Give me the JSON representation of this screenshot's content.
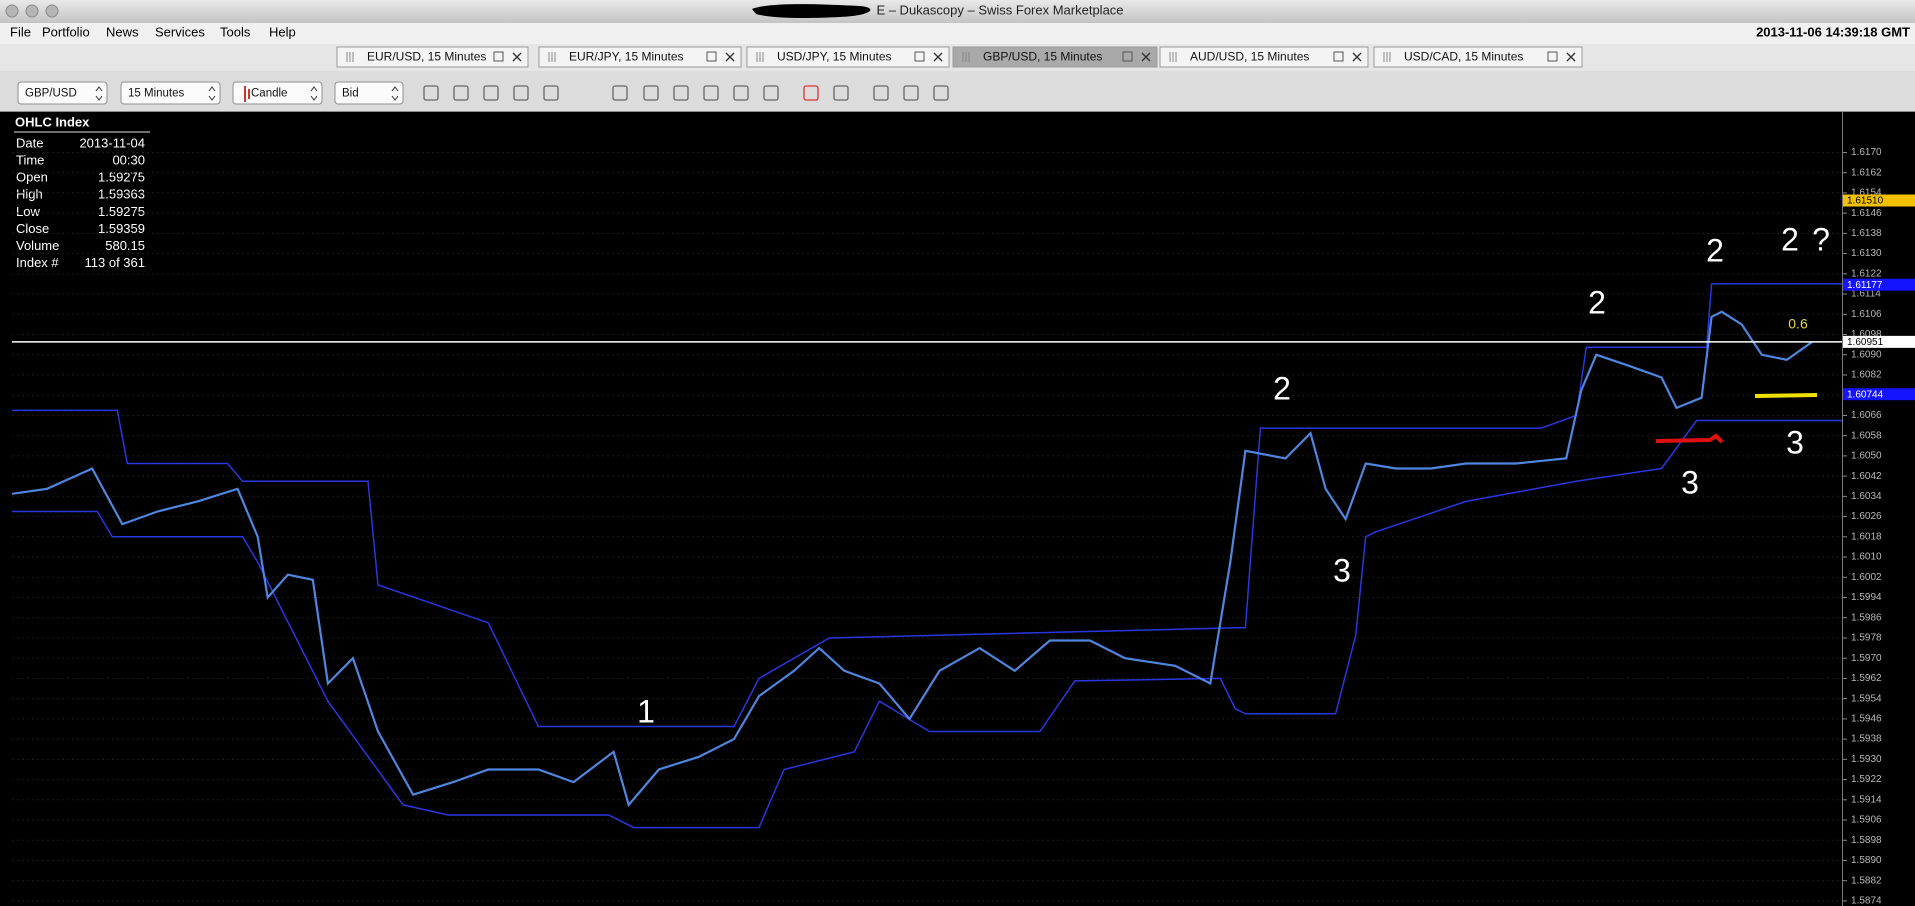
{
  "window": {
    "title": "E – Dukascopy – Swiss Forex Marketplace"
  },
  "menu": [
    "File",
    "Portfolio",
    "News",
    "Services",
    "Tools",
    "Help"
  ],
  "clock": "2013-11-06 14:39:18 GMT",
  "tabs": [
    "EUR/USD, 15 Minutes",
    "EUR/JPY, 15 Minutes",
    "USD/JPY, 15 Minutes",
    "GBP/USD, 15 Minutes",
    "AUD/USD, 15 Minutes",
    "USD/CAD, 15 Minutes"
  ],
  "active_tab": 3,
  "toolbar": [
    "GBP/USD",
    "15 Minutes",
    "Candle",
    "Bid"
  ],
  "ohlc_panel": {
    "title": "OHLC Index",
    "rows": [
      [
        "Date",
        "2013-11-04"
      ],
      [
        "Time",
        "00:30"
      ],
      [
        "Open",
        "1.59275"
      ],
      [
        "High",
        "1.59363"
      ],
      [
        "Low",
        "1.59275"
      ],
      [
        "Close",
        "1.59359"
      ],
      [
        "Volume",
        "580.15"
      ],
      [
        "Index #",
        "113 of 361"
      ]
    ]
  },
  "chart_data": {
    "type": "line",
    "color": "#4f86e0",
    "x": [
      0,
      7,
      16,
      22,
      29,
      37,
      45,
      49,
      51,
      55,
      60,
      63,
      68,
      73,
      80,
      88,
      95,
      105,
      112,
      120,
      123,
      129,
      137,
      144,
      149,
      156,
      161,
      166,
      173,
      179,
      185,
      193,
      200,
      207,
      215,
      222,
      232,
      239,
      243,
      246,
      254,
      259,
      262,
      266,
      270,
      276,
      283,
      290,
      300,
      310,
      313,
      316,
      322,
      329,
      332,
      337,
      339,
      341,
      345,
      349,
      354,
      359
    ],
    "values": [
      1.6035,
      1.6037,
      1.6045,
      1.6023,
      1.6028,
      1.6032,
      1.6037,
      1.6018,
      1.5994,
      1.6003,
      1.6001,
      1.596,
      1.597,
      1.5941,
      1.5916,
      1.5921,
      1.5926,
      1.5926,
      1.5921,
      1.5933,
      1.5912,
      1.5926,
      1.5931,
      1.5938,
      1.5955,
      1.5965,
      1.5974,
      1.5965,
      1.596,
      1.5946,
      1.5965,
      1.5974,
      1.5965,
      1.5977,
      1.5977,
      1.597,
      1.5967,
      1.596,
      1.6008,
      1.6052,
      1.6049,
      1.6059,
      1.6037,
      1.6025,
      1.6047,
      1.6045,
      1.6045,
      1.6047,
      1.6047,
      1.6049,
      1.6076,
      1.609,
      1.6086,
      1.6081,
      1.6069,
      1.6073,
      1.6105,
      1.6107,
      1.6102,
      1.609,
      1.6088,
      1.6095
    ],
    "xlim": [
      0,
      365
    ],
    "ylim": [
      1.5872,
      1.6186
    ],
    "yticks": [
      {
        "value": 1.617,
        "label": "1.6170"
      },
      1.6162,
      1.6154,
      1.6146,
      1.6138,
      {
        "value": 1.613,
        "label": "1.6130"
      },
      1.6122,
      1.6114,
      1.6106,
      1.6098,
      {
        "value": 1.609,
        "label": "1.6090"
      },
      1.6082,
      1.6074,
      1.6066,
      1.6058,
      {
        "value": 1.605,
        "label": "1.6050"
      },
      1.6042,
      1.6034,
      1.6026,
      1.6018,
      {
        "value": 1.601,
        "label": "1.6010"
      },
      1.6002,
      1.5994,
      1.5986,
      1.5978,
      {
        "value": 1.597,
        "label": "1.5970"
      },
      1.5962,
      1.5954,
      1.5946,
      1.5938,
      {
        "value": 1.593,
        "label": "1.5930"
      },
      1.5922,
      1.5914,
      1.5906,
      1.5898,
      {
        "value": 1.589,
        "label": "1.5890"
      },
      1.5882,
      1.5874
    ],
    "grid": true,
    "channels": [
      {
        "color": "#2a36e0",
        "x": [
          0,
          21,
          23,
          43,
          46,
          71,
          73,
          95,
          105,
          144,
          149,
          163,
          244,
          246,
          249,
          305,
          312,
          314,
          338,
          339,
          365
        ],
        "values": [
          1.6068,
          1.6068,
          1.6047,
          1.6047,
          1.604,
          1.604,
          1.5999,
          1.5984,
          1.5943,
          1.5943,
          1.5962,
          1.5978,
          1.5982,
          1.5982,
          1.6061,
          1.6061,
          1.6066,
          1.6093,
          1.6093,
          1.6118,
          1.6118
        ]
      },
      {
        "color": "#2a36e0",
        "x": [
          0,
          17,
          20,
          46,
          49,
          63,
          78,
          87,
          119,
          124,
          149,
          154,
          168,
          173,
          183,
          205,
          212,
          241,
          244,
          246,
          264,
          268,
          270,
          272,
          290,
          312,
          329,
          336,
          365
        ],
        "values": [
          1.6028,
          1.6028,
          1.6018,
          1.6018,
          1.6008,
          1.5953,
          1.5912,
          1.5908,
          1.5908,
          1.5903,
          1.5903,
          1.5926,
          1.5933,
          1.5953,
          1.5941,
          1.5941,
          1.5961,
          1.5962,
          1.595,
          1.5948,
          1.5948,
          1.5979,
          1.6018,
          1.602,
          1.6032,
          1.604,
          1.6045,
          1.6064,
          1.6064
        ]
      }
    ],
    "price_markers": [
      {
        "value": 1.6151,
        "label": "1.61510",
        "color": "#f2c200",
        "text_color": "#000000",
        "line": false
      },
      {
        "value": 1.61177,
        "label": "1.61177",
        "color": "#1414ff",
        "text_color": "#ffffff",
        "line": false
      },
      {
        "value": 1.60951,
        "label": "1.60951",
        "color": "#ffffff",
        "text_color": "#000000",
        "line": true
      },
      {
        "value": 1.60744,
        "label": "1.60744",
        "color": "#1414ff",
        "text_color": "#ffffff",
        "line": false
      }
    ],
    "annotations": [
      {
        "text": "1",
        "color": "#ffffff"
      },
      {
        "text": "2",
        "color": "#ffffff"
      },
      {
        "text": "2",
        "color": "#ffffff"
      },
      {
        "text": "2",
        "color": "#ffffff"
      },
      {
        "text": "2",
        "color": "#ffffff"
      },
      {
        "text": "?",
        "color": "#ffffff"
      },
      {
        "text": "3",
        "color": "#ffffff"
      },
      {
        "text": "3",
        "color": "#ffffff"
      },
      {
        "text": "3",
        "color": "#ffffff"
      },
      {
        "text": "0.6",
        "color": "#e8d43a"
      }
    ]
  }
}
